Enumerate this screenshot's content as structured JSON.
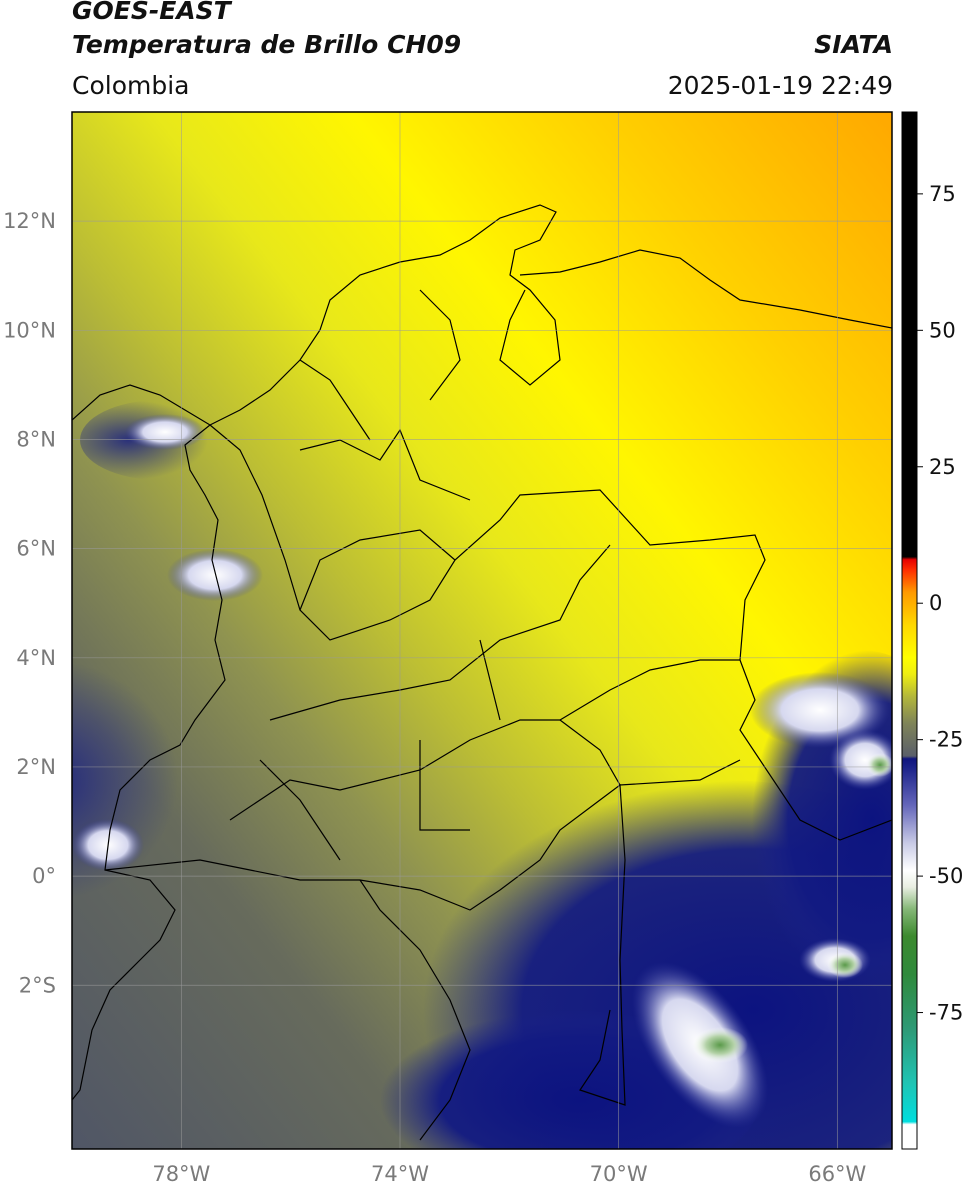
{
  "header": {
    "satellite": "GOES-EAST",
    "product": "Temperatura de Brillo CH09",
    "brand": "SIATA",
    "region": "Colombia",
    "timestamp": "2025-01-19 22:49"
  },
  "map": {
    "lon_range": [
      -80,
      -65
    ],
    "lat_range": [
      -5,
      14
    ],
    "lon_ticks": [
      {
        "value": -78,
        "label": "78°W"
      },
      {
        "value": -74,
        "label": "74°W"
      },
      {
        "value": -70,
        "label": "70°W"
      },
      {
        "value": -66,
        "label": "66°W"
      }
    ],
    "lat_ticks": [
      {
        "value": 12,
        "label": "12°N"
      },
      {
        "value": 10,
        "label": "10°N"
      },
      {
        "value": 8,
        "label": "8°N"
      },
      {
        "value": 6,
        "label": "6°N"
      },
      {
        "value": 4,
        "label": "4°N"
      },
      {
        "value": 2,
        "label": "2°N"
      },
      {
        "value": 0,
        "label": "0°"
      },
      {
        "value": -2,
        "label": "2°S"
      }
    ],
    "gridlines": true
  },
  "colorbar": {
    "range": [
      -100,
      90
    ],
    "tick_values": [
      75,
      50,
      25,
      0,
      -25,
      -50,
      -75
    ],
    "tick_labels": [
      "75",
      "50",
      "25",
      "0",
      "-25",
      "-50",
      "-75"
    ],
    "stops": [
      {
        "v": -100,
        "color": "#ffffff"
      },
      {
        "v": -95.5,
        "color": "#ffffff"
      },
      {
        "v": -95,
        "color": "#00dede"
      },
      {
        "v": -88,
        "color": "#1fc4b4"
      },
      {
        "v": -78,
        "color": "#2e9a76"
      },
      {
        "v": -68,
        "color": "#2f8a3c"
      },
      {
        "v": -61,
        "color": "#3c8a2e"
      },
      {
        "v": -56,
        "color": "#86b878"
      },
      {
        "v": -52,
        "color": "#e9eee2"
      },
      {
        "v": -49,
        "color": "#ffffff"
      },
      {
        "v": -44,
        "color": "#c9cbe6"
      },
      {
        "v": -37,
        "color": "#6466ba"
      },
      {
        "v": -30,
        "color": "#1b2289"
      },
      {
        "v": -28.5,
        "color": "#10157e"
      },
      {
        "v": -28,
        "color": "#5a5f6a"
      },
      {
        "v": -22,
        "color": "#7f8458"
      },
      {
        "v": -17,
        "color": "#b4b83a"
      },
      {
        "v": -13,
        "color": "#eeee12"
      },
      {
        "v": -10,
        "color": "#ffff00"
      },
      {
        "v": -4,
        "color": "#ffd800"
      },
      {
        "v": 2,
        "color": "#ff9a00"
      },
      {
        "v": 6,
        "color": "#ff3000"
      },
      {
        "v": 8,
        "color": "#e60000"
      },
      {
        "v": 8.5,
        "color": "#000000"
      },
      {
        "v": 90,
        "color": "#000000"
      }
    ]
  }
}
